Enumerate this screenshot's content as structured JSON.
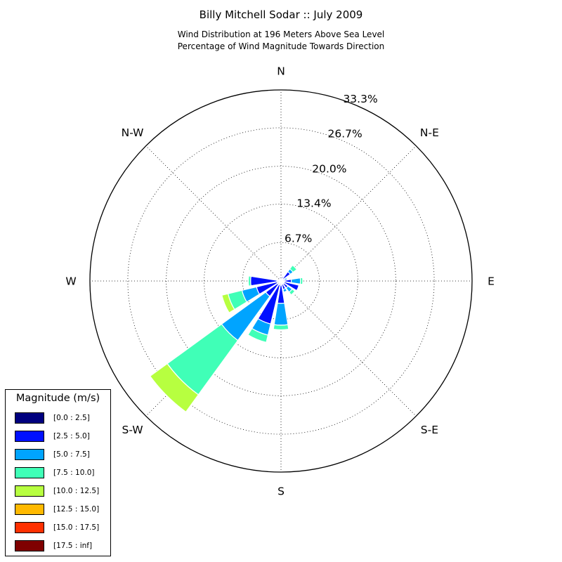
{
  "title": "Billy Mitchell Sodar :: July 2009",
  "subtitle_line1": "Wind Distribution at 196 Meters Above Sea Level",
  "subtitle_line2": "Percentage of Wind Magnitude Towards Direction",
  "colors": {
    "bins": [
      "#00007f",
      "#0010ff",
      "#00a4ff",
      "#40ffb7",
      "#b7ff40",
      "#ffb900",
      "#ff3000",
      "#7f0000"
    ]
  },
  "legend": {
    "title": "Magnitude (m/s)",
    "items": [
      "[0.0 : 2.5]",
      "[2.5 : 5.0]",
      "[5.0 : 7.5]",
      "[7.5 : 10.0]",
      "[10.0 : 12.5]",
      "[12.5 : 15.0]",
      "[15.0 : 17.5]",
      "[17.5 : inf]"
    ]
  },
  "chart_data": {
    "type": "windrose",
    "title": "Billy Mitchell Sodar :: July 2009",
    "subtitle": [
      "Wind Distribution at 196 Meters Above Sea Level",
      "Percentage of Wind Magnitude Towards Direction"
    ],
    "direction_labels": [
      "N",
      "N-E",
      "E",
      "S-E",
      "S",
      "S-W",
      "W",
      "N-W"
    ],
    "radial_ticks": [
      "6.7%",
      "13.4%",
      "20.0%",
      "26.7%",
      "33.3%"
    ],
    "r_max": 33.3,
    "grid": true,
    "legend_title": "Magnitude (m/s)",
    "legend_placement": "bottom-left",
    "series": [
      "[0.0 : 2.5]",
      "[2.5 : 5.0]",
      "[5.0 : 7.5]",
      "[7.5 : 10.0]",
      "[10.0 : 12.5]",
      "[12.5 : 15.0]",
      "[15.0 : 17.5]",
      "[17.5 : inf]"
    ],
    "sectors": [
      {
        "direction": 0,
        "values": [
          0.3,
          0,
          0,
          0,
          0,
          0,
          0,
          0
        ]
      },
      {
        "direction": 22.5,
        "values": [
          0.4,
          0.4,
          0,
          0,
          0,
          0,
          0,
          0
        ]
      },
      {
        "direction": 45,
        "values": [
          0.5,
          1.5,
          0.6,
          0.8,
          0,
          0,
          0,
          0
        ]
      },
      {
        "direction": 67.5,
        "values": [
          0.4,
          0.3,
          0.4,
          0,
          0,
          0,
          0,
          0
        ]
      },
      {
        "direction": 90,
        "values": [
          0.6,
          1.2,
          1.6,
          0.4,
          0,
          0,
          0,
          0
        ]
      },
      {
        "direction": 112.5,
        "values": [
          0.6,
          2.6,
          0,
          0,
          0,
          0,
          0,
          0
        ]
      },
      {
        "direction": 135,
        "values": [
          0.6,
          0.9,
          0.9,
          0.6,
          0,
          0,
          0,
          0
        ]
      },
      {
        "direction": 157.5,
        "values": [
          0.6,
          0.9,
          0.5,
          0,
          0,
          0,
          0,
          0
        ]
      },
      {
        "direction": 180,
        "values": [
          0.7,
          3.2,
          3.8,
          0.8,
          0,
          0,
          0,
          0
        ]
      },
      {
        "direction": 202.5,
        "values": [
          0.7,
          7.0,
          2.0,
          1.3,
          0,
          0,
          0,
          0
        ]
      },
      {
        "direction": 225,
        "values": [
          0.7,
          2.6,
          9.5,
          11.7,
          3.7,
          0,
          0,
          0
        ]
      },
      {
        "direction": 247.5,
        "values": [
          0.7,
          3.7,
          2.6,
          2.5,
          1.1,
          0,
          0,
          0
        ]
      },
      {
        "direction": 270,
        "values": [
          0.7,
          4.6,
          0,
          0.4,
          0,
          0,
          0,
          0
        ]
      },
      {
        "direction": 292.5,
        "values": [
          0.4,
          0,
          0,
          0,
          0,
          0,
          0,
          0
        ]
      },
      {
        "direction": 315,
        "values": [
          0.4,
          0,
          0,
          0,
          0,
          0,
          0,
          0
        ]
      },
      {
        "direction": 337.5,
        "values": [
          0.4,
          0.3,
          0,
          0,
          0,
          0,
          0,
          0
        ]
      }
    ]
  }
}
